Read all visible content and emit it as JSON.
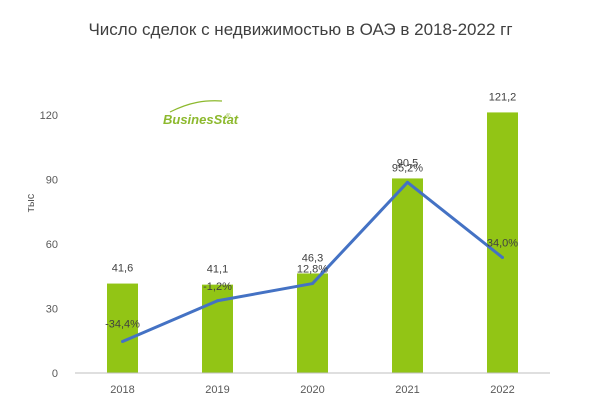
{
  "chart_data": {
    "type": "bar",
    "title": "Число сделок с недвижимостью в ОАЭ в 2018-2022 гг",
    "ylabel": "тыс",
    "xlabel": "",
    "categories": [
      "2018",
      "2019",
      "2020",
      "2021",
      "2022"
    ],
    "ylim": [
      0,
      120
    ],
    "yticks": [
      "0",
      "30",
      "60",
      "90",
      "120"
    ],
    "bar_series": {
      "values": [
        41.6,
        41.1,
        46.3,
        90.5,
        121.2
      ],
      "labels": [
        "41,6",
        "41,1",
        "46,3",
        "90,5",
        "121,2"
      ],
      "color": "#92c515"
    },
    "line_series": {
      "values": [
        -34.4,
        -1.2,
        12.8,
        95.2,
        34.0
      ],
      "labels": [
        "-34,4%",
        "-1,2%",
        "12,8%",
        "95,2%",
        "34,0%"
      ],
      "color": "#4472c4",
      "axis": "secondary, hidden"
    },
    "legend": "none",
    "grid": false
  },
  "brand": {
    "logo_text": "BusinesStat",
    "colors": {
      "bar": "#92c515",
      "line": "#4472c4",
      "title": "#404040",
      "logo": "#8db92e"
    }
  }
}
